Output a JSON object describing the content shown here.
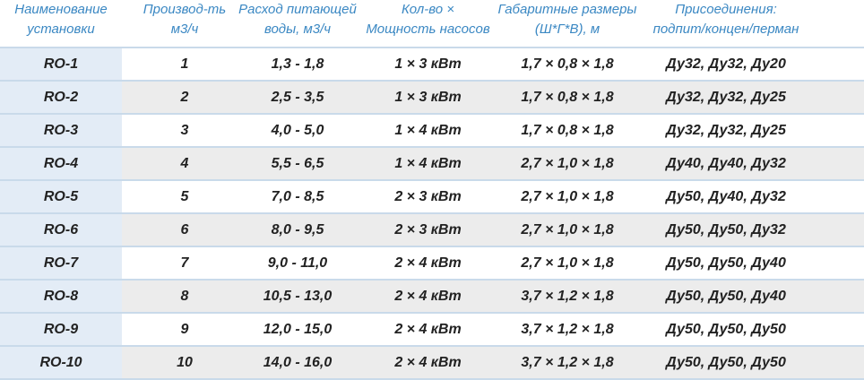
{
  "headers": [
    {
      "line1": "Наименование",
      "line2": "установки"
    },
    {
      "line1": "Производ-ть",
      "line2": "м3/ч"
    },
    {
      "line1": "Расход питающей",
      "line2": "воды, м3/ч"
    },
    {
      "line1": "Кол-во  ×",
      "line2": "Мощность насосов"
    },
    {
      "line1": "Габаритные размеры",
      "line2": "(Ш*Г*В), м"
    },
    {
      "line1": "Присоединения:",
      "line2": "подпит/концен/перман"
    }
  ],
  "rows": [
    {
      "name": "RO-1",
      "capacity": "1",
      "flow": "1,3 - 1,8",
      "pumps": "1 × 3 кВт",
      "dims": "1,7 × 0,8 × 1,8",
      "connections": "Ду32, Ду32, Ду20"
    },
    {
      "name": "RO-2",
      "capacity": "2",
      "flow": "2,5 - 3,5",
      "pumps": "1 × 3 кВт",
      "dims": "1,7 × 0,8 × 1,8",
      "connections": "Ду32, Ду32, Ду25"
    },
    {
      "name": "RO-3",
      "capacity": "3",
      "flow": "4,0 - 5,0",
      "pumps": "1 × 4 кВт",
      "dims": "1,7 × 0,8 × 1,8",
      "connections": "Ду32, Ду32, Ду25"
    },
    {
      "name": "RO-4",
      "capacity": "4",
      "flow": "5,5 - 6,5",
      "pumps": "1 × 4 кВт",
      "dims": "2,7 × 1,0 × 1,8",
      "connections": "Ду40, Ду40, Ду32"
    },
    {
      "name": "RO-5",
      "capacity": "5",
      "flow": "7,0 - 8,5",
      "pumps": "2 × 3 кВт",
      "dims": "2,7 × 1,0 × 1,8",
      "connections": "Ду50, Ду40, Ду32"
    },
    {
      "name": "RO-6",
      "capacity": "6",
      "flow": "8,0 - 9,5",
      "pumps": "2 × 3 кВт",
      "dims": "2,7 × 1,0 × 1,8",
      "connections": "Ду50, Ду50, Ду32"
    },
    {
      "name": "RO-7",
      "capacity": "7",
      "flow": "9,0 - 11,0",
      "pumps": "2 × 4 кВт",
      "dims": "2,7 × 1,0 × 1,8",
      "connections": "Ду50, Ду50, Ду40"
    },
    {
      "name": "RO-8",
      "capacity": "8",
      "flow": "10,5 - 13,0",
      "pumps": "2 × 4 кВт",
      "dims": "3,7 × 1,2 × 1,8",
      "connections": "Ду50, Ду50, Ду40"
    },
    {
      "name": "RO-9",
      "capacity": "9",
      "flow": "12,0 - 15,0",
      "pumps": "2 × 4 кВт",
      "dims": "3,7 × 1,2 × 1,8",
      "connections": "Ду50, Ду50, Ду50"
    },
    {
      "name": "RO-10",
      "capacity": "10",
      "flow": "14,0 - 16,0",
      "pumps": "2 × 4 кВт",
      "dims": "3,7 × 1,2 × 1,8",
      "connections": "Ду50, Ду50, Ду50"
    }
  ],
  "colors": {
    "header_text": "#3b88c3",
    "first_col_bg": "#e3ecf6",
    "alt_row_bg": "#ececec",
    "separator": "#c9daea"
  }
}
